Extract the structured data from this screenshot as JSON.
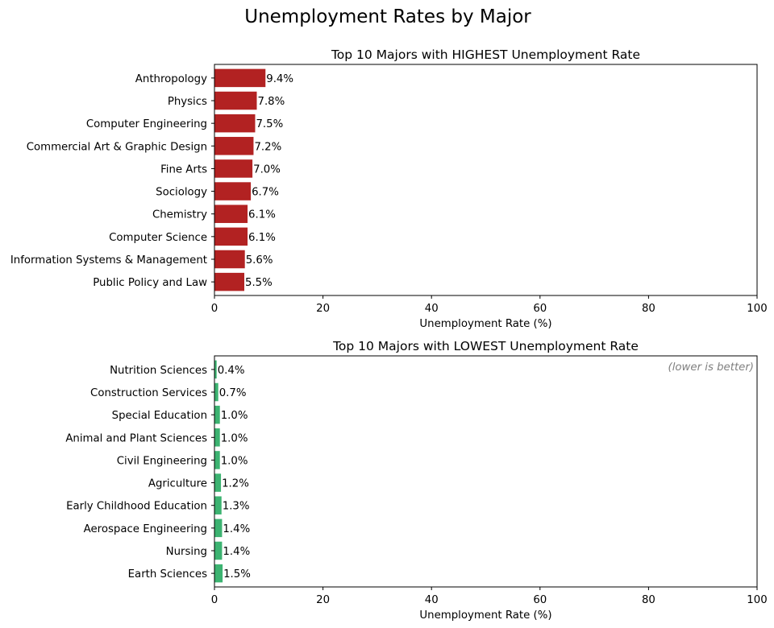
{
  "figure": {
    "title": "Unemployment Rates by Major"
  },
  "chart_data": [
    {
      "type": "bar",
      "orientation": "horizontal",
      "title": "Top 10 Majors with HIGHEST Unemployment Rate",
      "xlabel": "Unemployment Rate (%)",
      "ylabel": "",
      "xlim": [
        0,
        100
      ],
      "xticks": [
        0,
        20,
        40,
        60,
        80,
        100
      ],
      "categories": [
        "Anthropology",
        "Physics",
        "Computer Engineering",
        "Commercial Art & Graphic Design",
        "Fine Arts",
        "Sociology",
        "Chemistry",
        "Computer Science",
        "Information Systems & Management",
        "Public Policy and Law"
      ],
      "values": [
        9.4,
        7.8,
        7.5,
        7.2,
        7.0,
        6.7,
        6.1,
        6.1,
        5.6,
        5.5
      ],
      "value_labels": [
        "9.4%",
        "7.8%",
        "7.5%",
        "7.2%",
        "7.0%",
        "6.7%",
        "6.1%",
        "6.1%",
        "5.6%",
        "5.5%"
      ],
      "color": "#b22222",
      "annotation": "",
      "grid": false
    },
    {
      "type": "bar",
      "orientation": "horizontal",
      "title": "Top 10 Majors with LOWEST Unemployment Rate",
      "xlabel": "Unemployment Rate (%)",
      "ylabel": "",
      "xlim": [
        0,
        100
      ],
      "xticks": [
        0,
        20,
        40,
        60,
        80,
        100
      ],
      "categories": [
        "Nutrition Sciences",
        "Construction Services",
        "Special Education",
        "Animal and Plant Sciences",
        "Civil Engineering",
        "Agriculture",
        "Early Childhood Education",
        "Aerospace Engineering",
        "Nursing",
        "Earth Sciences"
      ],
      "values": [
        0.4,
        0.7,
        1.0,
        1.0,
        1.0,
        1.2,
        1.3,
        1.4,
        1.4,
        1.5
      ],
      "value_labels": [
        "0.4%",
        "0.7%",
        "1.0%",
        "1.0%",
        "1.0%",
        "1.2%",
        "1.3%",
        "1.4%",
        "1.4%",
        "1.5%"
      ],
      "color": "#3cb371",
      "annotation": "(lower is better)",
      "grid": false
    }
  ]
}
